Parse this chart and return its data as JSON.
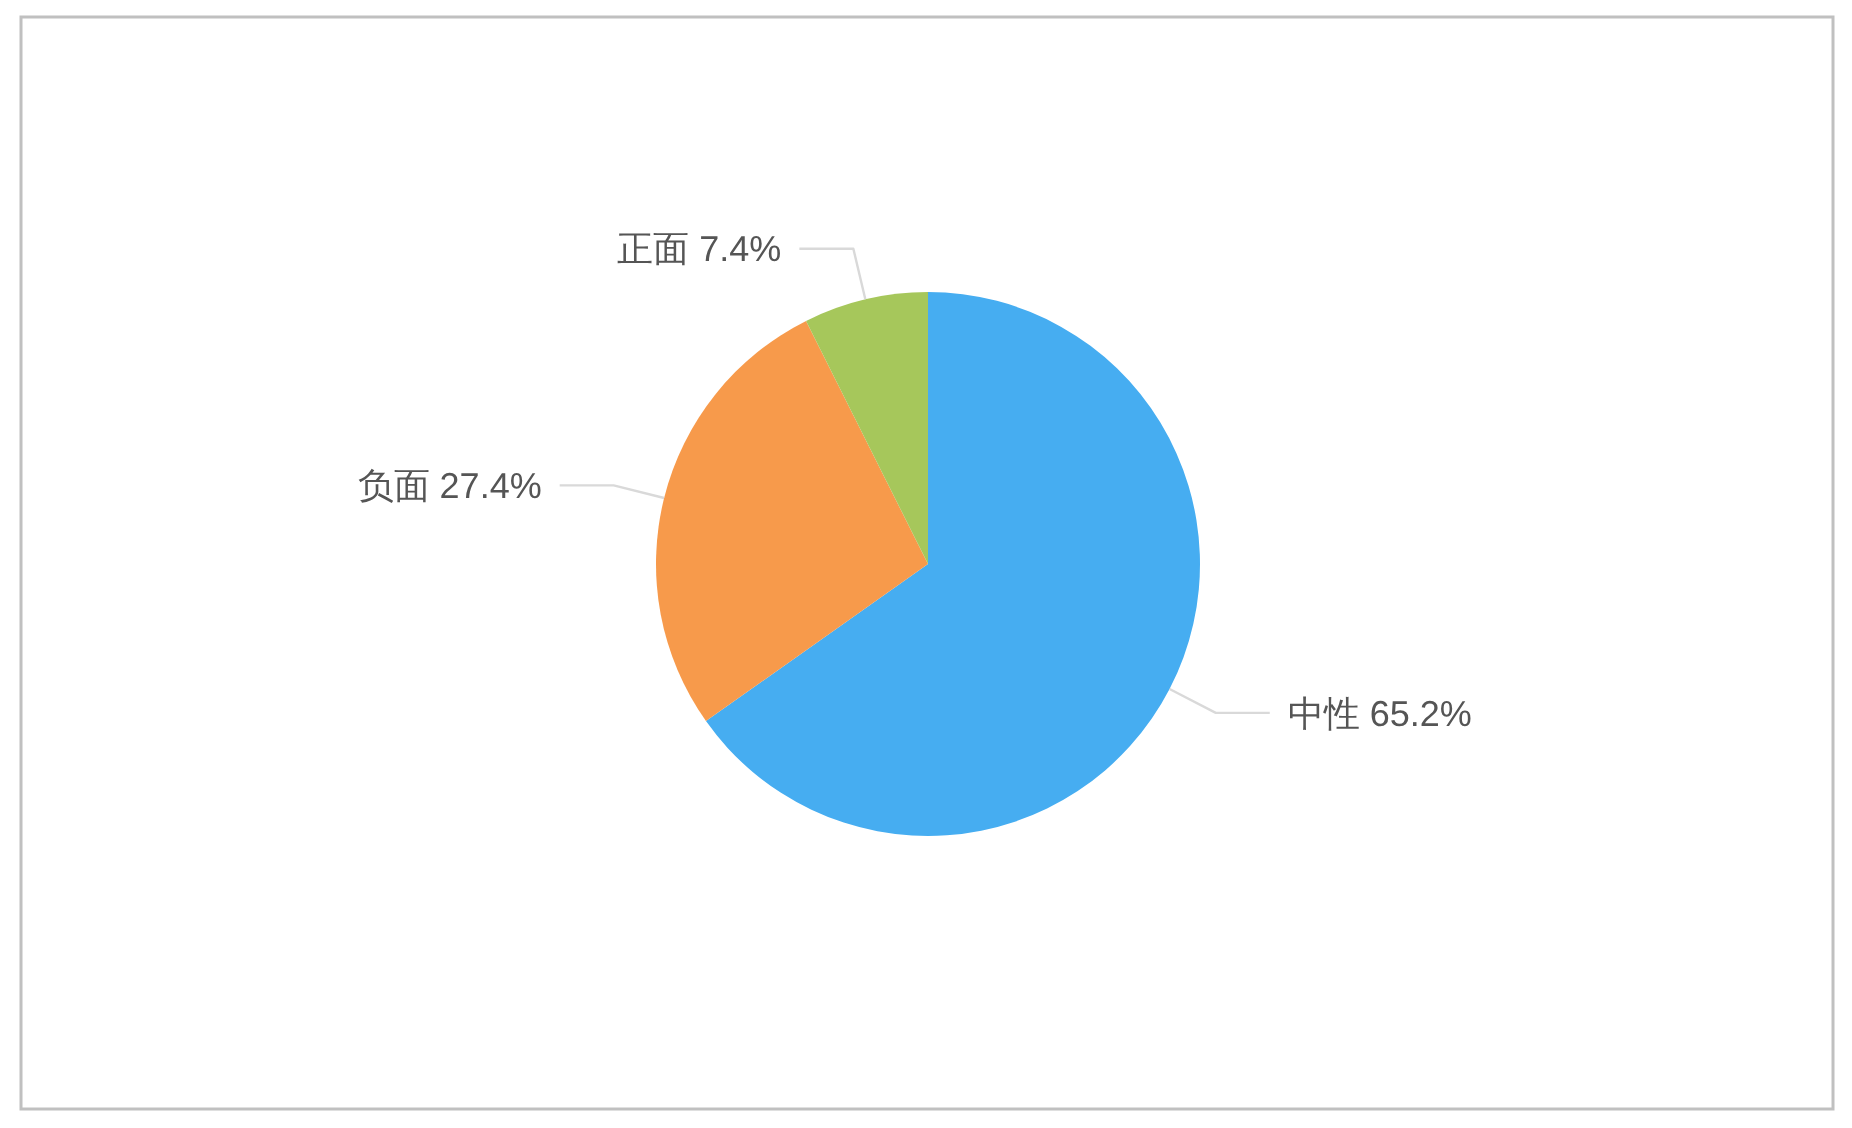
{
  "chart_data": {
    "type": "pie",
    "categories": [
      "中性",
      "负面",
      "正面"
    ],
    "values": [
      65.2,
      27.4,
      7.4
    ],
    "colors": [
      "#46adf1",
      "#f79a4b",
      "#a6c75b"
    ],
    "value_labels": [
      "65.2%",
      "27.4%",
      "7.4%"
    ],
    "legend": false
  }
}
